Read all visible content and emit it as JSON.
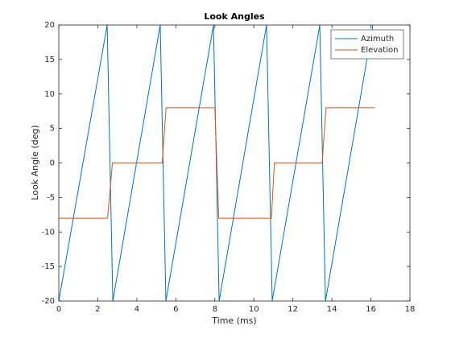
{
  "chart_data": {
    "type": "line",
    "title": "Look Angles",
    "xlabel": "Time (ms)",
    "ylabel": "Look Angle (deg)",
    "xlim": [
      0,
      18
    ],
    "xticks": [
      0,
      2,
      4,
      6,
      8,
      10,
      12,
      14,
      16,
      18
    ],
    "ylim": [
      -20,
      20
    ],
    "yticks": [
      -20,
      -15,
      -10,
      -5,
      0,
      5,
      10,
      15,
      20
    ],
    "legend": "upper right",
    "series": [
      {
        "name": "Azimuth",
        "color": "#0072bd",
        "x": [
          0,
          2.48,
          2.77,
          5.2,
          5.49,
          7.93,
          8.22,
          10.65,
          10.94,
          13.38,
          13.67,
          16.1
        ],
        "values": [
          -20,
          20,
          -20,
          20,
          -20,
          20,
          -20,
          20,
          -20,
          20,
          -20,
          20
        ]
      },
      {
        "name": "Elevation",
        "color": "#d95319",
        "x": [
          0,
          2.5,
          2.75,
          5.3,
          5.5,
          8.0,
          8.2,
          10.9,
          11.05,
          13.5,
          13.7,
          16.2
        ],
        "values": [
          -8,
          -8,
          0,
          0,
          8,
          8,
          -8,
          -8,
          0,
          0,
          8,
          8
        ]
      }
    ]
  }
}
